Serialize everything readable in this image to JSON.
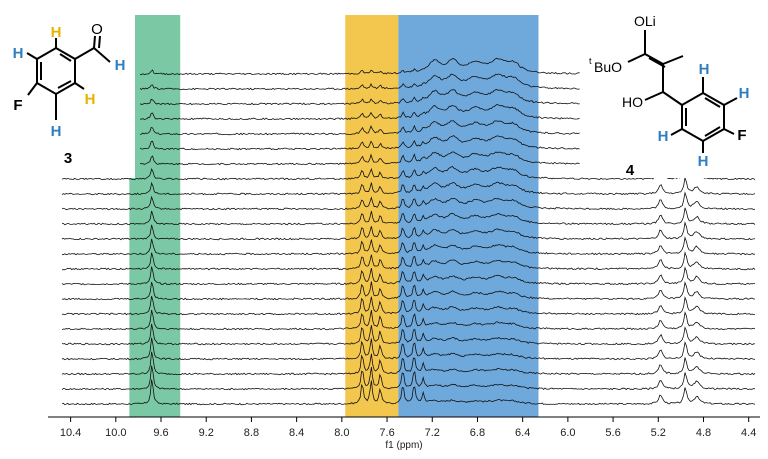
{
  "chart_data": {
    "type": "line",
    "title": "",
    "xlabel": "f1 (ppm)",
    "ylabel": "",
    "x_reversed": true,
    "xlim": [
      10.6,
      4.3
    ],
    "x_ticks": [
      "10.4",
      "10.0",
      "9.6",
      "9.2",
      "8.8",
      "8.4",
      "8.0",
      "7.6",
      "7.2",
      "6.8",
      "6.4",
      "6.0",
      "5.6",
      "5.2",
      "4.8",
      "4.4"
    ],
    "n_spectra": 23,
    "stacking": "bottom spectrum at bottom; later spectra offset upward",
    "peaks_compound_3": [
      9.68,
      7.82,
      7.74,
      7.66,
      7.46,
      7.36,
      7.28
    ],
    "peaks_compound_4": [
      7.18,
      7.02,
      6.82,
      6.62,
      6.48,
      5.18,
      4.98,
      4.86
    ],
    "highlight_regions": [
      {
        "from": 9.88,
        "to": 9.43,
        "color": "#7bc8a4"
      },
      {
        "from": 7.97,
        "to": 7.5,
        "color": "#f3c64d"
      },
      {
        "from": 7.5,
        "to": 6.26,
        "color": "#6fa9dc"
      }
    ]
  },
  "structure_3": {
    "label": "3",
    "atoms": {
      "H_top": "H",
      "H_left": "H",
      "H_ald": "H",
      "H_right": "H",
      "H_bottom": "H",
      "F": "F",
      "O": "O"
    },
    "colors": {
      "yellow": "#e6b400",
      "blue": "#2f7fc1",
      "bond": "#000000"
    }
  },
  "structure_4": {
    "label": "4",
    "atoms": {
      "OLi": "OLi",
      "tBu_sup": "t",
      "tBu_main": "BuO",
      "HO": "HO",
      "H_a": "H",
      "H_b": "H",
      "H_c": "H",
      "H_d": "H",
      "F": "F"
    },
    "colors": {
      "blue": "#2f7fc1",
      "bond": "#000000"
    }
  }
}
